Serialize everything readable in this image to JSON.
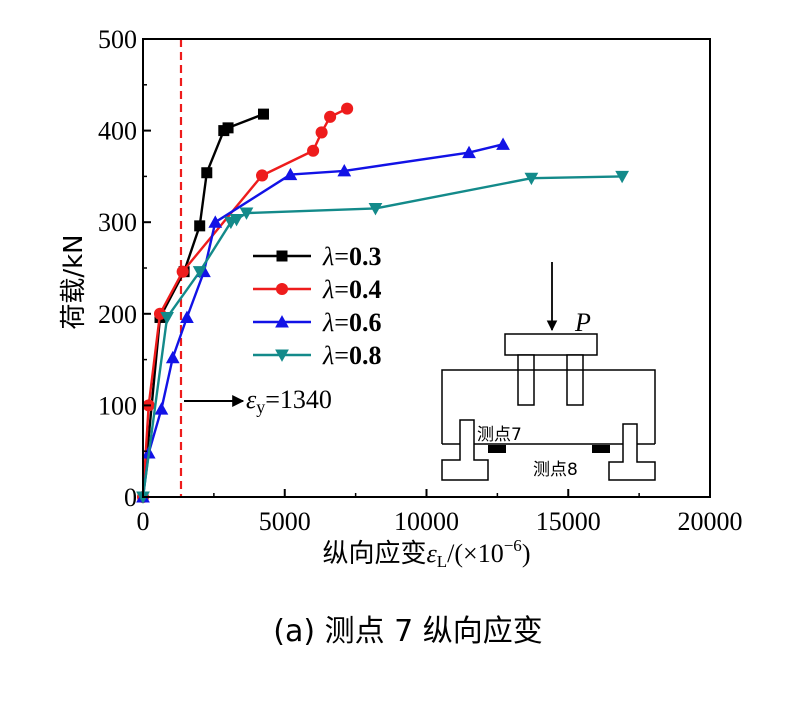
{
  "chart_data": {
    "type": "line",
    "title": "",
    "xlabel": {
      "prefix": "纵向应变",
      "symbol": "ε",
      "subscript": "L",
      "open": "/(×10",
      "exponent": "−6",
      "close": ")"
    },
    "ylabel": "荷载/kN",
    "xlim": [
      0,
      20000
    ],
    "ylim": [
      0,
      500
    ],
    "xticks": [
      0,
      5000,
      10000,
      15000,
      20000
    ],
    "yticks": [
      0,
      100,
      200,
      300,
      400,
      500
    ],
    "xtick_labels": [
      "0",
      "5000",
      "10000",
      "15000",
      "20000"
    ],
    "ytick_labels": [
      "0",
      "100",
      "200",
      "300",
      "400",
      "500"
    ],
    "grid": false,
    "legend_position": "middle-left",
    "series": [
      {
        "name": "λ=0.3",
        "lambda_value": "0.3",
        "color": "#000000",
        "marker": "square",
        "x": [
          0,
          600,
          1450,
          2000,
          2250,
          2850,
          3000,
          4250
        ],
        "y": [
          0,
          196,
          246,
          296,
          354,
          400,
          403,
          418
        ]
      },
      {
        "name": "λ=0.4",
        "lambda_value": "0.4",
        "color": "#ee1c1c",
        "marker": "circle",
        "x": [
          0,
          200,
          600,
          1400,
          4200,
          6000,
          6300,
          6600,
          7200
        ],
        "y": [
          0,
          100,
          200,
          246,
          351,
          378,
          398,
          415,
          424
        ]
      },
      {
        "name": "λ=0.6",
        "lambda_value": "0.6",
        "color": "#1212e6",
        "marker": "triangle-up",
        "x": [
          0,
          200,
          650,
          1050,
          1550,
          2150,
          2550,
          5200,
          7100,
          11500,
          12700
        ],
        "y": [
          0,
          48,
          96,
          152,
          196,
          246,
          300,
          352,
          356,
          376,
          385
        ]
      },
      {
        "name": "λ=0.8",
        "lambda_value": "0.8",
        "color": "#138a8a",
        "marker": "triangle-down",
        "x": [
          0,
          850,
          2000,
          3100,
          3300,
          3650,
          8200,
          13700,
          16900
        ],
        "y": [
          0,
          196,
          246,
          300,
          303,
          310,
          315,
          348,
          350
        ]
      }
    ],
    "reference_line": {
      "x": 1340,
      "color": "#ee1c1c",
      "style": "dashed"
    },
    "annotation": {
      "symbol": "ε",
      "subscript": "y",
      "value_text": "=1340"
    }
  },
  "inset": {
    "load_label": "P",
    "gauge7_label": "测点7",
    "gauge8_label": "测点8"
  },
  "caption": "(a)  测点 7 纵向应变"
}
